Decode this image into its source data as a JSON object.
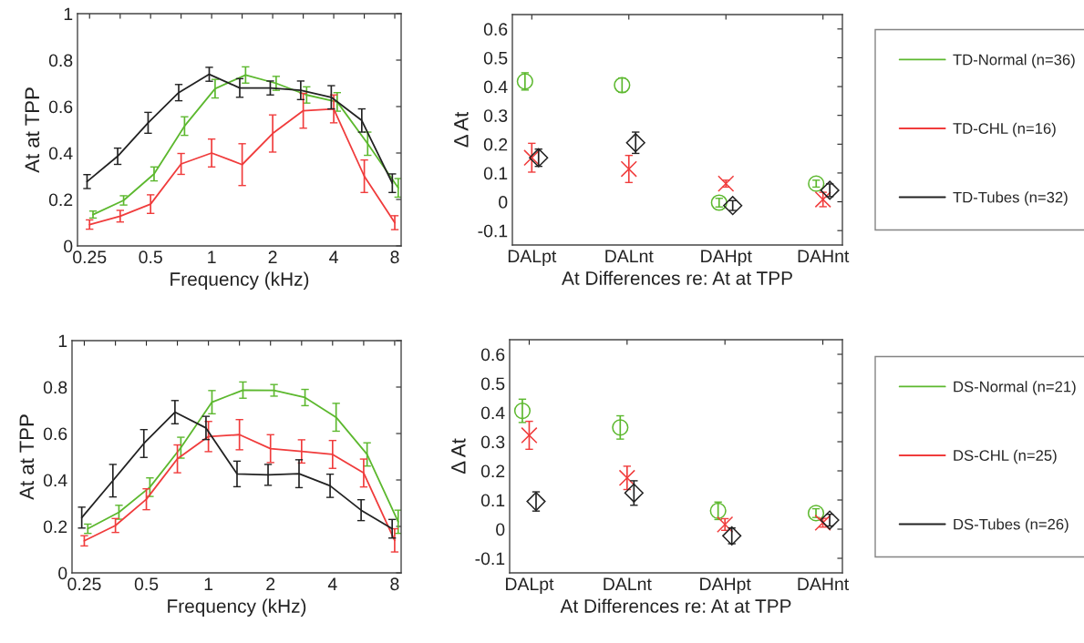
{
  "chart_data": [
    {
      "type": "line",
      "xlabel": "Frequency (kHz)",
      "ylabel": "At at TPP",
      "log": "x",
      "xlim": [
        0.218,
        8.6
      ],
      "ylim": [
        0,
        1
      ],
      "xticks": [
        0.25,
        {
          "value": 0.354,
          "label": null
        },
        0.5,
        {
          "value": 0.707,
          "label": null
        },
        1,
        {
          "value": 1.414,
          "label": null
        },
        2,
        {
          "value": 2.83,
          "label": null
        },
        4,
        {
          "value": 5.66,
          "label": null
        },
        8
      ],
      "yticks": [
        0,
        0.2,
        0.4,
        0.6,
        0.8,
        1
      ],
      "grid": false,
      "legend": "right",
      "marker": "none",
      "line_style": "solid",
      "series": [
        {
          "name": "TD-Normal (n=36)",
          "color": "#5cb82e",
          "x": [
            0.26,
            0.368,
            0.52,
            0.735,
            1.04,
            1.47,
            2.08,
            2.94,
            4.16,
            5.88,
            8.32
          ],
          "values": [
            0.135,
            0.196,
            0.31,
            0.516,
            0.677,
            0.736,
            0.7,
            0.65,
            0.62,
            0.44,
            0.25
          ],
          "errors": [
            0.015,
            0.02,
            0.03,
            0.04,
            0.04,
            0.035,
            0.03,
            0.035,
            0.04,
            0.05,
            0.04
          ]
        },
        {
          "name": "TD-CHL (n=16)",
          "color": "#f03c3c",
          "x": [
            0.25,
            0.354,
            0.5,
            0.707,
            1,
            1.414,
            2,
            2.83,
            4,
            5.66,
            8
          ],
          "values": [
            0.092,
            0.128,
            0.18,
            0.353,
            0.4,
            0.35,
            0.484,
            0.582,
            0.59,
            0.3,
            0.1
          ],
          "errors": [
            0.02,
            0.025,
            0.04,
            0.045,
            0.06,
            0.09,
            0.08,
            0.075,
            0.06,
            0.07,
            0.03
          ]
        },
        {
          "name": "TD-Tubes (n=32)",
          "color": "#222222",
          "x": [
            0.243,
            0.344,
            0.486,
            0.688,
            0.973,
            1.376,
            1.946,
            2.75,
            3.89,
            5.5,
            7.78
          ],
          "values": [
            0.277,
            0.386,
            0.53,
            0.66,
            0.739,
            0.68,
            0.68,
            0.67,
            0.64,
            0.54,
            0.27
          ],
          "errors": [
            0.03,
            0.035,
            0.045,
            0.035,
            0.03,
            0.04,
            0.03,
            0.04,
            0.05,
            0.05,
            0.04
          ]
        }
      ]
    },
    {
      "type": "scatter",
      "xlabel": "At Differences re: At at TPP",
      "ylabel": "Δ At",
      "categories": [
        "DALpt",
        "DALnt",
        "DAHpt",
        "DAHnt"
      ],
      "ylim": [
        -0.15,
        0.65
      ],
      "yticks": [
        -0.1,
        0,
        0.1,
        0.2,
        0.3,
        0.4,
        0.5,
        0.6
      ],
      "grid": false,
      "series": [
        {
          "color": "#5cb82e",
          "marker": "circle",
          "values": [
            0.418,
            0.405,
            -0.003,
            0.063
          ],
          "errors": [
            0.03,
            0.025,
            0.015,
            0.012
          ]
        },
        {
          "color": "#f03c3c",
          "marker": "cross",
          "values": [
            0.153,
            0.114,
            0.063,
            0.008
          ],
          "errors": [
            0.05,
            0.047,
            0.012,
            0.025
          ]
        },
        {
          "color": "#222222",
          "marker": "diamond",
          "values": [
            0.153,
            0.205,
            -0.013,
            0.04
          ],
          "errors": [
            0.03,
            0.037,
            0.017,
            0.022
          ]
        }
      ]
    },
    {
      "type": "line",
      "xlabel": "Frequency (kHz)",
      "ylabel": "At at TPP",
      "log": "x",
      "xlim": [
        0.218,
        8.6
      ],
      "ylim": [
        0,
        1
      ],
      "xticks": [
        0.25,
        {
          "value": 0.354,
          "label": null
        },
        0.5,
        {
          "value": 0.707,
          "label": null
        },
        1,
        {
          "value": 1.414,
          "label": null
        },
        2,
        {
          "value": 2.83,
          "label": null
        },
        4,
        {
          "value": 5.66,
          "label": null
        },
        8
      ],
      "yticks": [
        0,
        0.2,
        0.4,
        0.6,
        0.8,
        1
      ],
      "grid": false,
      "legend": "right",
      "marker": "none",
      "line_style": "solid",
      "series": [
        {
          "name": "DS-Normal (n=21)",
          "color": "#5cb82e",
          "x": [
            0.26,
            0.368,
            0.52,
            0.735,
            1.04,
            1.47,
            2.08,
            2.94,
            4.16,
            5.88,
            8.32
          ],
          "values": [
            0.19,
            0.261,
            0.369,
            0.539,
            0.735,
            0.787,
            0.786,
            0.755,
            0.67,
            0.51,
            0.22
          ],
          "errors": [
            0.02,
            0.03,
            0.04,
            0.045,
            0.05,
            0.035,
            0.025,
            0.035,
            0.06,
            0.05,
            0.05
          ]
        },
        {
          "name": "DS-CHL (n=25)",
          "color": "#f03c3c",
          "x": [
            0.25,
            0.354,
            0.5,
            0.707,
            1,
            1.414,
            2,
            2.83,
            4,
            5.66,
            8
          ],
          "values": [
            0.138,
            0.204,
            0.317,
            0.491,
            0.587,
            0.595,
            0.535,
            0.523,
            0.51,
            0.43,
            0.14
          ],
          "errors": [
            0.022,
            0.03,
            0.045,
            0.06,
            0.065,
            0.065,
            0.06,
            0.05,
            0.06,
            0.06,
            0.05
          ]
        },
        {
          "name": "DS-Tubes (n=26)",
          "color": "#222222",
          "x": [
            0.243,
            0.344,
            0.486,
            0.688,
            0.973,
            1.376,
            1.946,
            2.75,
            3.89,
            5.5,
            7.78
          ],
          "values": [
            0.238,
            0.397,
            0.557,
            0.692,
            0.624,
            0.426,
            0.422,
            0.427,
            0.375,
            0.27,
            0.19
          ],
          "errors": [
            0.045,
            0.07,
            0.06,
            0.05,
            0.05,
            0.055,
            0.045,
            0.06,
            0.05,
            0.045,
            0.04
          ]
        }
      ]
    },
    {
      "type": "scatter",
      "xlabel": "At Differences re: At at TPP",
      "ylabel": "Δ At",
      "categories": [
        "DALpt",
        "DALnt",
        "DAHpt",
        "DAHnt"
      ],
      "ylim": [
        -0.15,
        0.65
      ],
      "yticks": [
        -0.1,
        0,
        0.1,
        0.2,
        0.3,
        0.4,
        0.5,
        0.6
      ],
      "grid": false,
      "series": [
        {
          "color": "#5cb82e",
          "marker": "circle",
          "values": [
            0.406,
            0.349,
            0.063,
            0.055
          ],
          "errors": [
            0.04,
            0.04,
            0.03,
            0.015
          ]
        },
        {
          "color": "#f03c3c",
          "marker": "cross",
          "values": [
            0.322,
            0.176,
            0.016,
            0.022
          ],
          "errors": [
            0.048,
            0.04,
            0.02,
            0.015
          ]
        },
        {
          "color": "#222222",
          "marker": "diamond",
          "values": [
            0.095,
            0.124,
            -0.023,
            0.031
          ],
          "errors": [
            0.033,
            0.042,
            0.027,
            0.02
          ]
        }
      ]
    }
  ]
}
